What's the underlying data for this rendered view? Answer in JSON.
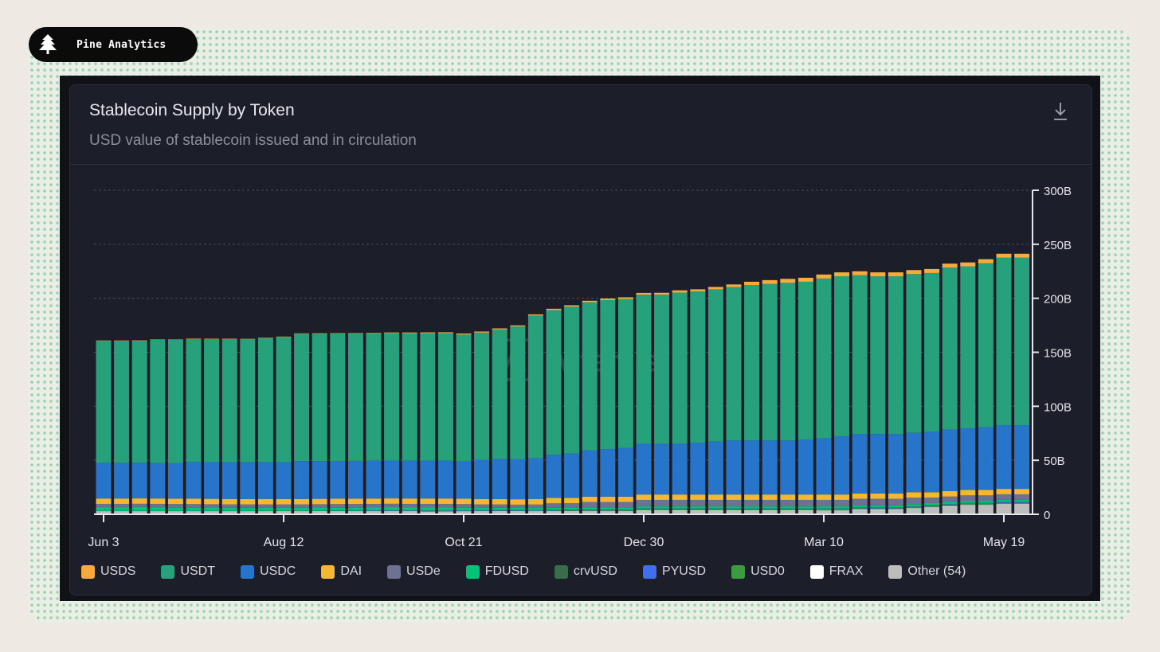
{
  "brand": {
    "name": "Pine Analytics",
    "icon": "pine-tree-icon"
  },
  "card": {
    "title": "Stablecoin Supply by Token",
    "subtitle": "USD value of stablecoin issued and in circulation",
    "download_icon": "download-icon",
    "watermark": "Artemis"
  },
  "colors": {
    "USDS": "#f6ab3c",
    "USDT": "#26a17b",
    "USDC": "#2775ca",
    "DAI": "#f4b731",
    "USDe": "#6e7191",
    "FDUSD": "#00c278",
    "crvUSD": "#3a6b4b",
    "PYUSD": "#3f6ff0",
    "USD0": "#3c9a40",
    "FRAX": "#ffffff",
    "Other (54)": "#bdbdbd"
  },
  "chart_data": {
    "type": "bar",
    "stacked": true,
    "ylim": [
      0,
      300
    ],
    "y_unit": "B",
    "yticks": [
      "0",
      "50B",
      "100B",
      "150B",
      "200B",
      "250B",
      "300B"
    ],
    "xtick_labels": [
      "Jun 3",
      "Aug 12",
      "Oct 21",
      "Dec 30",
      "Mar 10",
      "May 19"
    ],
    "xtick_indices": [
      0,
      10,
      20,
      30,
      40,
      50
    ],
    "grid": true,
    "legend_position": "bottom",
    "categories": [
      "Jun 3",
      "Jun 10",
      "Jun 17",
      "Jun 24",
      "Jul 1",
      "Jul 8",
      "Jul 15",
      "Jul 22",
      "Jul 29",
      "Aug 5",
      "Aug 12",
      "Aug 19",
      "Aug 26",
      "Sep 2",
      "Sep 9",
      "Sep 16",
      "Sep 23",
      "Sep 30",
      "Oct 7",
      "Oct 14",
      "Oct 21",
      "Oct 28",
      "Nov 4",
      "Nov 11",
      "Nov 18",
      "Nov 25",
      "Dec 2",
      "Dec 9",
      "Dec 16",
      "Dec 23",
      "Dec 30",
      "Jan 6",
      "Jan 13",
      "Jan 20",
      "Jan 27",
      "Feb 3",
      "Feb 10",
      "Feb 17",
      "Feb 24",
      "Mar 3",
      "Mar 10",
      "Mar 17",
      "Mar 24",
      "Mar 31",
      "Apr 7",
      "Apr 14",
      "Apr 21",
      "Apr 28",
      "May 5",
      "May 12",
      "May 19",
      "May 26"
    ],
    "series": [
      {
        "name": "Other (54)",
        "values": [
          2,
          2,
          2,
          2,
          2,
          2,
          2,
          2,
          2,
          2,
          2,
          2,
          2,
          2,
          2,
          2,
          2,
          2,
          2,
          2,
          2,
          2,
          2,
          2,
          2,
          2,
          2,
          2,
          2,
          2,
          3,
          3,
          3,
          3,
          3,
          3,
          3,
          3,
          3,
          3,
          3,
          3,
          4,
          4,
          4,
          5,
          6,
          7,
          8,
          8,
          9,
          9
        ]
      },
      {
        "name": "FRAX",
        "values": [
          0.6,
          0.6,
          0.6,
          0.6,
          0.6,
          0.6,
          0.6,
          0.6,
          0.6,
          0.6,
          0.6,
          0.6,
          0.6,
          0.6,
          0.6,
          0.6,
          0.6,
          0.6,
          0.6,
          0.6,
          0.6,
          0.6,
          0.6,
          0.6,
          0.6,
          0.6,
          0.6,
          0.6,
          0.6,
          0.6,
          0.6,
          0.6,
          0.6,
          0.6,
          0.6,
          0.6,
          0.6,
          0.6,
          0.6,
          0.6,
          0.5,
          0.5,
          0.5,
          0.5,
          0.5,
          0.5,
          0.5,
          0.5,
          0.5,
          0.5,
          0.5,
          0.5
        ]
      },
      {
        "name": "USD0",
        "values": [
          0,
          0,
          0,
          0,
          0,
          0,
          0,
          0,
          0,
          0,
          0,
          0,
          0,
          0,
          0,
          0,
          0,
          0,
          0.1,
          0.2,
          0.3,
          0.4,
          0.5,
          0.6,
          0.7,
          0.8,
          0.9,
          1,
          1,
          1,
          1,
          1,
          1,
          1,
          1,
          1,
          1,
          1,
          1,
          1,
          1,
          1,
          1,
          1,
          1,
          1,
          1,
          1,
          1,
          1,
          1,
          1
        ]
      },
      {
        "name": "PYUSD",
        "values": [
          0.4,
          0.4,
          0.4,
          0.4,
          0.4,
          0.4,
          0.4,
          0.4,
          0.4,
          0.5,
          0.5,
          0.5,
          0.6,
          0.7,
          0.8,
          0.9,
          1,
          0.9,
          0.8,
          0.7,
          0.6,
          0.6,
          0.6,
          0.6,
          0.6,
          0.6,
          0.6,
          0.6,
          0.6,
          0.6,
          0.6,
          0.6,
          0.6,
          0.6,
          0.6,
          0.6,
          0.6,
          0.6,
          0.6,
          0.6,
          0.7,
          0.7,
          0.7,
          0.7,
          0.7,
          0.8,
          0.8,
          0.8,
          0.9,
          0.9,
          0.9,
          0.9
        ]
      },
      {
        "name": "crvUSD",
        "values": [
          0.1,
          0.1,
          0.1,
          0.1,
          0.1,
          0.1,
          0.1,
          0.1,
          0.1,
          0.1,
          0.1,
          0.1,
          0.1,
          0.1,
          0.1,
          0.1,
          0.1,
          0.1,
          0.1,
          0.1,
          0.1,
          0.1,
          0.1,
          0.1,
          0.1,
          0.1,
          0.1,
          0.1,
          0.1,
          0.1,
          0.1,
          0.1,
          0.1,
          0.1,
          0.1,
          0.1,
          0.1,
          0.1,
          0.1,
          0.1,
          0.1,
          0.1,
          0.1,
          0.1,
          0.1,
          0.1,
          0.1,
          0.1,
          0.1,
          0.1,
          0.1,
          0.1
        ]
      },
      {
        "name": "FDUSD",
        "values": [
          3.5,
          3.5,
          3.6,
          3.5,
          3.4,
          3.3,
          3.2,
          3.1,
          3,
          3,
          3,
          3,
          3,
          3,
          3,
          3,
          3,
          3,
          3,
          3,
          2.8,
          2.5,
          2.3,
          2,
          2,
          2,
          2,
          2,
          2,
          2,
          2,
          2,
          2,
          2,
          2,
          2,
          2,
          2,
          2,
          2,
          2,
          2,
          2,
          2,
          2,
          2,
          2,
          2,
          2,
          2,
          2,
          2
        ]
      },
      {
        "name": "USDe",
        "values": [
          3,
          3,
          3,
          3,
          3,
          3,
          3,
          3,
          3,
          3,
          3,
          3,
          3,
          3,
          3,
          3,
          3,
          3,
          3,
          3,
          3,
          3,
          3,
          3,
          3,
          4,
          4,
          5,
          5,
          5,
          6,
          6,
          6,
          6,
          6,
          6,
          6,
          6,
          6,
          6,
          6,
          6,
          6,
          6,
          6,
          6,
          5,
          5,
          5,
          5,
          5,
          5
        ]
      },
      {
        "name": "DAI",
        "values": [
          5,
          5,
          5,
          5,
          5,
          5,
          5,
          5,
          5,
          5,
          5,
          5,
          5,
          5,
          5,
          5,
          5,
          5,
          5,
          5,
          5,
          5,
          5,
          5,
          5,
          5,
          5,
          5,
          5,
          5,
          5,
          5,
          5,
          5,
          5,
          5,
          5,
          5,
          5,
          5,
          5,
          5,
          5,
          5,
          5,
          5,
          5,
          5,
          5,
          5,
          5,
          5
        ]
      },
      {
        "name": "USDC",
        "values": [
          33,
          33,
          33,
          33,
          33,
          34,
          34,
          34,
          34,
          34,
          34,
          35,
          35,
          35,
          35,
          35,
          35,
          35,
          35,
          35,
          35,
          36,
          37,
          37,
          38,
          40,
          41,
          43,
          44,
          45,
          47,
          47,
          47,
          48,
          49,
          50,
          50,
          50,
          50,
          51,
          52,
          54,
          55,
          55,
          55,
          55,
          56,
          57,
          57,
          58,
          59,
          59
        ]
      },
      {
        "name": "USDT",
        "values": [
          113,
          113,
          113,
          114,
          114,
          114,
          114,
          114,
          114,
          115,
          116,
          118,
          118,
          118,
          118,
          118,
          118,
          118,
          118,
          118,
          117,
          118,
          120,
          123,
          132,
          134,
          136,
          137,
          138,
          138,
          138,
          138,
          140,
          140,
          141,
          142,
          144,
          145,
          146,
          146,
          148,
          148,
          147,
          146,
          146,
          147,
          147,
          150,
          150,
          152,
          155,
          155
        ]
      },
      {
        "name": "USDS",
        "values": [
          0.3,
          0.3,
          0.3,
          0.3,
          0.3,
          0.3,
          0.3,
          0.3,
          0.3,
          0.3,
          0.3,
          0.3,
          0.3,
          0.3,
          0.3,
          0.4,
          0.6,
          0.7,
          0.8,
          0.9,
          1,
          1,
          1,
          1,
          1.1,
          1.2,
          1.3,
          1.4,
          1.5,
          1.6,
          1.7,
          1.8,
          2,
          2,
          2.2,
          2.5,
          3,
          3.5,
          3.7,
          3.7,
          3.7,
          3.7,
          3.7,
          3.7,
          3.7,
          3.7,
          3.7,
          3.7,
          3.7,
          3.7,
          3.7,
          3.7
        ]
      }
    ]
  },
  "legend": [
    {
      "label": "USDS",
      "key": "USDS"
    },
    {
      "label": "USDT",
      "key": "USDT"
    },
    {
      "label": "USDC",
      "key": "USDC"
    },
    {
      "label": "DAI",
      "key": "DAI"
    },
    {
      "label": "USDe",
      "key": "USDe"
    },
    {
      "label": "FDUSD",
      "key": "FDUSD"
    },
    {
      "label": "crvUSD",
      "key": "crvUSD"
    },
    {
      "label": "PYUSD",
      "key": "PYUSD"
    },
    {
      "label": "USD0",
      "key": "USD0"
    },
    {
      "label": "FRAX",
      "key": "FRAX"
    },
    {
      "label": "Other (54)",
      "key": "Other (54)"
    }
  ]
}
